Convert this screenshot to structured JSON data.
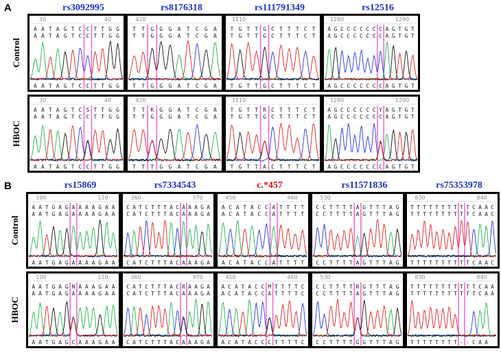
{
  "panel_a": {
    "label": "A",
    "snps": [
      {
        "name": "rs3092995",
        "color": "#1a33c8"
      },
      {
        "name": "rs8176318",
        "color": "#1a33c8"
      },
      {
        "name": "rs111791349",
        "color": "#1a33c8"
      },
      {
        "name": "rs12516",
        "color": "#1a33c8"
      }
    ],
    "rows": [
      {
        "label": "Control",
        "boxes": [
          {
            "ruler": [
              "30",
              "40"
            ],
            "reads": [
              "AATAGTCCTTGG",
              "AATAGTCCTTGG"
            ],
            "call": "AATAGTCCTTGG"
          },
          {
            "ruler": [
              "420"
            ],
            "reads": [
              "TTGGGATCGA",
              "TTGGGATCGA"
            ],
            "call": "TTGGGATCGA"
          },
          {
            "ruler": [
              "1110"
            ],
            "reads": [
              "TGTTGCTTTCT",
              "TGTTGCTTTCT"
            ],
            "call": "TGTTGCTTTCT"
          },
          {
            "ruler": [
              "1280",
              "1290"
            ],
            "reads": [
              "AGCCCCCCCAGTGT",
              "AGCCCCCCCAGTGT"
            ],
            "call": "AGCCCCCCCAGTGT"
          }
        ]
      },
      {
        "label": "HBOC",
        "boxes": [
          {
            "ruler": [
              "30",
              "40"
            ],
            "reads": [
              "AATAGTCSTTGG",
              "AATAGTCCTTGG"
            ],
            "call": "AATAGTCCTTGG"
          },
          {
            "ruler": [
              "420"
            ],
            "reads": [
              "TTKGGATCGA",
              "TTGGGATCGA"
            ],
            "call": "TTTGGATCGA"
          },
          {
            "ruler": [
              "1110"
            ],
            "reads": [
              "TGTTRCTTTCT",
              "TGTTGCTTTCT"
            ],
            "call": "TGTTACTTTCT"
          },
          {
            "ruler": [
              "1280",
              "1290"
            ],
            "reads": [
              "AGCCCCCCYAGTGT",
              "AGCCCCCCCAGTGT"
            ],
            "call": "AGCCCCCCCAGTGT"
          }
        ]
      }
    ]
  },
  "panel_b": {
    "label": "B",
    "snps": [
      {
        "name": "rs15869",
        "color": "#1a33c8"
      },
      {
        "name": "rs7334543",
        "color": "#1a33c8"
      },
      {
        "name": "c.*457",
        "color": "#e01010"
      },
      {
        "name": "rs11571836",
        "color": "#1a33c8"
      },
      {
        "name": "rs75353978",
        "color": "#1a33c8"
      }
    ],
    "rows": [
      {
        "label": "Control",
        "boxes": [
          {
            "ruler": [
              "100",
              "110"
            ],
            "reads": [
              "AATGAGAAAAGAA",
              "AATGAGAAAAGAA"
            ],
            "call": "AATGAGAAAAGAA"
          },
          {
            "ruler": [
              "360",
              "370"
            ],
            "reads": [
              "CATCTTTACAAAGA",
              "CATCTTTACAAAGA"
            ],
            "call": "CATCTTTACAAAGA"
          },
          {
            "ruler": [
              "450",
              "460"
            ],
            "reads": [
              "ACATACCATTTT",
              "ACATACCATTTT"
            ],
            "call": "ACATACCATTTT"
          },
          {
            "ruler": [
              "530"
            ],
            "reads": [
              "CCTTTTAGTTTAG",
              "CCTTTTAGTTTAG"
            ],
            "call": "CCTTTTAGTTTAG"
          },
          {
            "ruler": [
              "830",
              "840"
            ],
            "reads": [
              "TTTTTTTTTTCAAC",
              "TTTTTTTTTTCAAC"
            ],
            "call": "TTTTTTTTTTCAAC"
          }
        ]
      },
      {
        "label": "HBOC",
        "boxes": [
          {
            "ruler": [
              "100",
              "110"
            ],
            "reads": [
              "AATGAGNAAAGAA",
              "AATGAGAAAAGAA"
            ],
            "call": "AATGAGCAAAGAA"
          },
          {
            "ruler": [
              "360",
              "370"
            ],
            "reads": [
              "CATCTTTACRAAGA",
              "CATCTTTACAAAGA"
            ],
            "call": "CATCTTTACAAAGA"
          },
          {
            "ruler": [
              "450",
              "460"
            ],
            "reads": [
              "ACATACCMTTTTC",
              "ACATACCATTTTC"
            ],
            "call": "ACATACCCTTTTC"
          },
          {
            "ruler": [
              "530"
            ],
            "reads": [
              "CCTTTTRGTTTAG",
              "CCTTTTAGTTTAG"
            ],
            "call": "CCTTTTGGTTTAG"
          },
          {
            "ruler": [
              "830",
              "840"
            ],
            "reads": [
              "TTTTTTTTTTTCAA",
              "TTTTTTTTTTTCAA"
            ],
            "call": "TTTTTTTT--CAA"
          }
        ]
      }
    ]
  }
}
